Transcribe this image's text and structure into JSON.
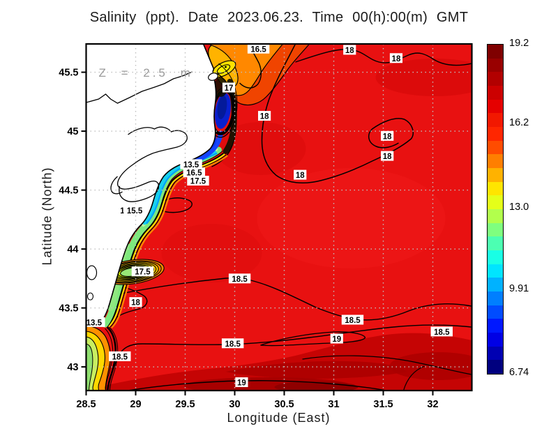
{
  "title": "Salinity (ppt). Date 2023.06.23. Time 00(h):00(m) GMT",
  "annotation": "Z = 2.5 m",
  "axes": {
    "x": {
      "label": "Longitude (East)",
      "ticks": [
        "28.5",
        "29",
        "29.5",
        "30",
        "30.5",
        "31",
        "31.5",
        "32"
      ]
    },
    "y": {
      "label": "Latitude (North)",
      "ticks": [
        "45.5",
        "45",
        "44.5",
        "44",
        "43.5",
        "43"
      ]
    }
  },
  "colorbar": {
    "min": 6.74,
    "max": 19.2,
    "tick_labels": [
      "19.2",
      "16.2",
      "13.0",
      "9.91",
      "6.74"
    ],
    "colors_top_to_bottom": [
      "#7f0000",
      "#990000",
      "#b20000",
      "#cc0000",
      "#e50000",
      "#f21800",
      "#ff2600",
      "#ff4c00",
      "#ff7f00",
      "#ffb200",
      "#ffe500",
      "#e5ff19",
      "#b2ff4c",
      "#7fff7f",
      "#4cffb2",
      "#19ffe5",
      "#00e5ff",
      "#00b2ff",
      "#007fff",
      "#004cff",
      "#0018ff",
      "#0000e5",
      "#0000b2",
      "#00007f"
    ]
  },
  "chart_data": {
    "type": "heatmap",
    "variable": "Salinity (ppt)",
    "date": "2023.06.23",
    "time": "00(h):00(m) GMT",
    "depth": "2.5 m",
    "xlabel": "Longitude (East)",
    "ylabel": "Latitude (North)",
    "xlim": [
      28.5,
      32.39
    ],
    "ylim": [
      42.8,
      45.74
    ],
    "x_ticks": [
      28.5,
      29,
      29.5,
      30,
      30.5,
      31,
      31.5,
      32
    ],
    "y_ticks": [
      43,
      43.5,
      44,
      44.5,
      45,
      45.5
    ],
    "grid": true,
    "colorbar_range": [
      6.74,
      19.2
    ],
    "colorbar_ticks": [
      6.74,
      9.91,
      13.0,
      16.2,
      19.2
    ],
    "contour_levels_labeled": [
      11.5,
      13.5,
      15.5,
      16.5,
      17,
      17.5,
      18,
      18.5,
      19
    ],
    "contour_labels": [
      {
        "value": "16.5",
        "lon": 30.24,
        "lat": 45.7
      },
      {
        "value": "18",
        "lon": 31.16,
        "lat": 45.69
      },
      {
        "value": "18",
        "lon": 31.63,
        "lat": 45.62
      },
      {
        "value": "17",
        "lon": 29.94,
        "lat": 45.37
      },
      {
        "value": "18",
        "lon": 30.3,
        "lat": 45.13
      },
      {
        "value": "18",
        "lon": 31.54,
        "lat": 44.96
      },
      {
        "value": "18",
        "lon": 31.54,
        "lat": 44.79
      },
      {
        "value": "18",
        "lon": 30.66,
        "lat": 44.63
      },
      {
        "value": "13.5",
        "lon": 29.56,
        "lat": 44.72
      },
      {
        "value": "16.5",
        "lon": 29.59,
        "lat": 44.65
      },
      {
        "value": "17.5",
        "lon": 29.63,
        "lat": 44.58
      },
      {
        "value": "11.5",
        "lon": 28.92,
        "lat": 44.33
      },
      {
        "value": "15.5",
        "lon": 28.99,
        "lat": 44.33
      },
      {
        "value": "17.5",
        "lon": 29.07,
        "lat": 43.81
      },
      {
        "value": "18",
        "lon": 29.0,
        "lat": 43.55
      },
      {
        "value": "13.5",
        "lon": 28.58,
        "lat": 43.38
      },
      {
        "value": "18.5",
        "lon": 28.84,
        "lat": 43.09
      },
      {
        "value": "18.5",
        "lon": 30.05,
        "lat": 43.75
      },
      {
        "value": "18.5",
        "lon": 29.98,
        "lat": 43.2
      },
      {
        "value": "19",
        "lon": 30.07,
        "lat": 42.87
      },
      {
        "value": "18.5",
        "lon": 31.19,
        "lat": 43.4
      },
      {
        "value": "19",
        "lon": 31.03,
        "lat": 43.24
      },
      {
        "value": "18.5",
        "lon": 32.09,
        "lat": 43.3
      }
    ]
  }
}
